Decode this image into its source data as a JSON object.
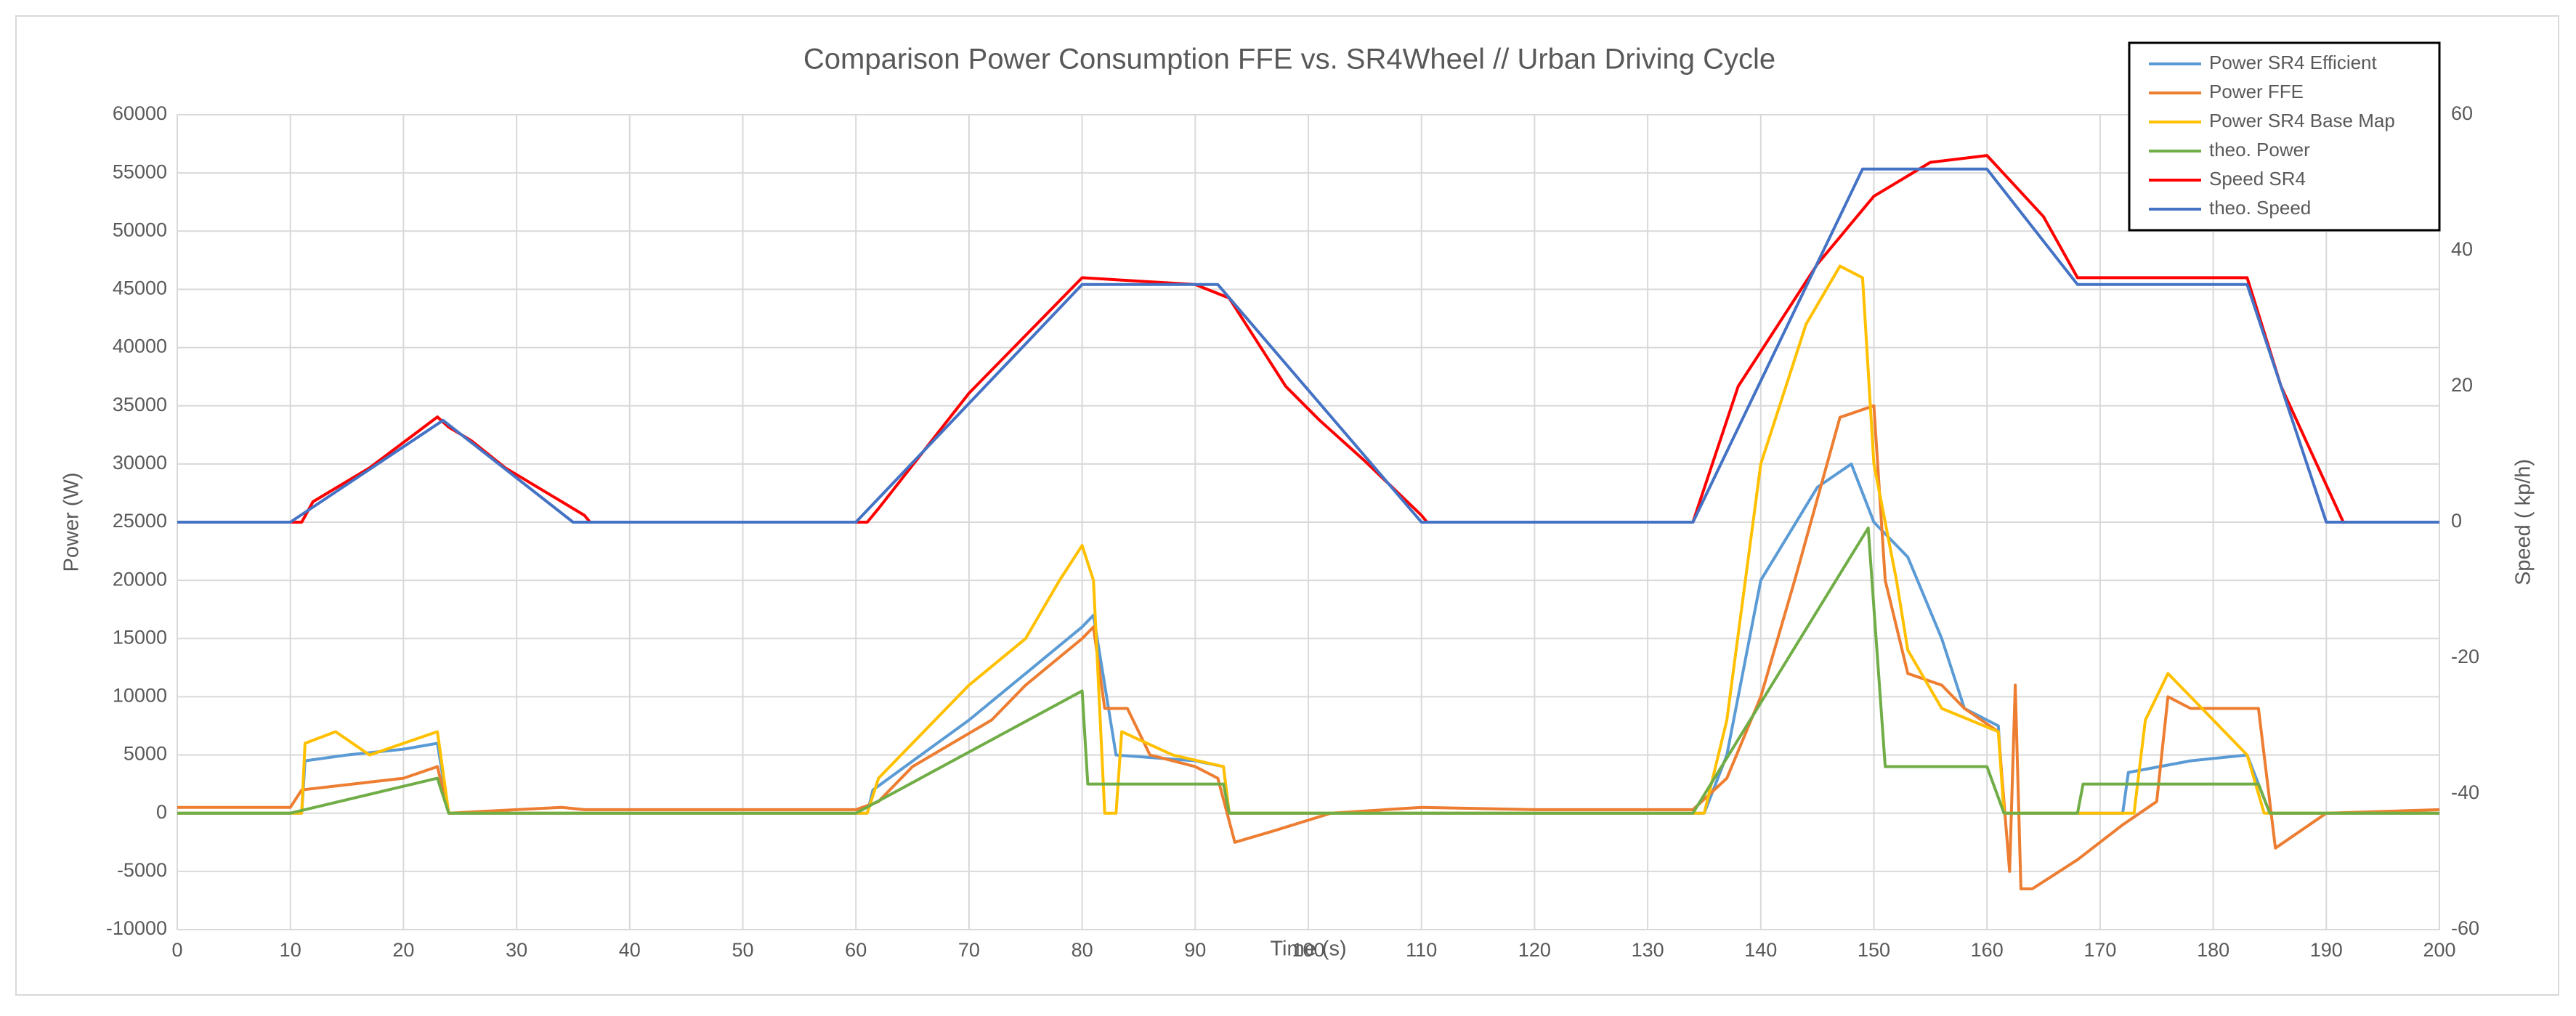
{
  "chart_data": {
    "type": "line",
    "title": "Comparison Power Consumption FFE vs. SR4Wheel // Urban Driving Cycle",
    "xlabel": "Time (s)",
    "ylabel": "Power (W)",
    "y2label": "Speed ( kp/h)",
    "xlim": [
      0,
      200
    ],
    "xticks": [
      0,
      10,
      20,
      30,
      40,
      50,
      60,
      70,
      80,
      90,
      100,
      110,
      120,
      130,
      140,
      150,
      160,
      170,
      180,
      190,
      200
    ],
    "ylim": [
      -10000,
      60000
    ],
    "yticks": [
      -10000,
      -5000,
      0,
      5000,
      10000,
      15000,
      20000,
      25000,
      30000,
      35000,
      40000,
      45000,
      50000,
      55000,
      60000
    ],
    "y2lim": [
      -60,
      60
    ],
    "y2ticks": [
      -60,
      -40,
      -20,
      0,
      20,
      40,
      60
    ],
    "grid": true,
    "legend": "upper right",
    "series": [
      {
        "name": "Power SR4 Efficient",
        "color": "#5b9bd5",
        "x": [
          0,
          11,
          11.3,
          15,
          20,
          23,
          24,
          61,
          61.5,
          70,
          75,
          80,
          81,
          83,
          90,
          92.5,
          93,
          135,
          137,
          140,
          145,
          148,
          150,
          153,
          156,
          158,
          161,
          161.5,
          172,
          172.5,
          178,
          183,
          185,
          200
        ],
        "values": [
          0,
          0,
          4500,
          5000,
          5500,
          6000,
          0,
          0,
          2000,
          8000,
          12000,
          16000,
          17000,
          5000,
          4500,
          4000,
          0,
          0,
          5000,
          20000,
          28000,
          30000,
          25000,
          22000,
          15000,
          9000,
          7500,
          0,
          0,
          3500,
          4500,
          5000,
          0,
          0
        ]
      },
      {
        "name": "Power FFE",
        "color": "#ed7d31",
        "x": [
          0,
          10,
          11,
          20,
          23,
          24,
          30,
          34,
          36,
          60,
          62,
          65,
          72,
          75,
          80,
          81,
          82,
          84,
          86,
          90,
          92,
          93.5,
          97,
          102,
          110,
          120,
          134,
          137,
          140,
          143,
          145,
          147,
          150,
          151,
          153,
          156,
          158,
          161,
          162,
          162.5,
          163,
          164,
          168,
          172,
          175,
          176,
          178,
          184,
          185.5,
          190,
          200
        ],
        "values": [
          500,
          500,
          2000,
          3000,
          4000,
          0,
          300,
          500,
          300,
          300,
          1000,
          4000,
          8000,
          11000,
          15000,
          16000,
          9000,
          9000,
          5000,
          4000,
          3000,
          -2500,
          -1500,
          0,
          500,
          300,
          300,
          3000,
          10000,
          20000,
          27000,
          34000,
          35000,
          20000,
          12000,
          11000,
          9000,
          7000,
          -5000,
          11000,
          -6500,
          -6500,
          -4000,
          -1000,
          1000,
          10000,
          9000,
          9000,
          -3000,
          0,
          300
        ]
      },
      {
        "name": "Power SR4 Base Map",
        "color": "#ffc000",
        "x": [
          0,
          11,
          11.3,
          14,
          17,
          20,
          23,
          24,
          61,
          62,
          70,
          75,
          78,
          80,
          81,
          82,
          83,
          83.5,
          88,
          92.5,
          93,
          135,
          137,
          140,
          144,
          147,
          149,
          150,
          152,
          153,
          156,
          161,
          161.5,
          173,
          174,
          176,
          178,
          182,
          183,
          184.5,
          200
        ],
        "values": [
          0,
          0,
          6000,
          7000,
          5000,
          6000,
          7000,
          0,
          0,
          3000,
          11000,
          15000,
          20000,
          23000,
          20000,
          0,
          0,
          7000,
          5000,
          4000,
          0,
          0,
          8000,
          30000,
          42000,
          47000,
          46000,
          30000,
          20000,
          14000,
          9000,
          7000,
          0,
          0,
          8000,
          12000,
          10000,
          6000,
          5000,
          0,
          0
        ]
      },
      {
        "name": "theo. Power",
        "color": "#70ad47",
        "x": [
          0,
          10,
          23,
          24,
          60,
          80,
          80.5,
          92.5,
          93,
          134,
          149.5,
          151,
          160,
          161.5,
          168,
          168.5,
          184,
          185,
          200
        ],
        "values": [
          0,
          0,
          3000,
          0,
          0,
          10500,
          2500,
          2500,
          0,
          0,
          24500,
          4000,
          4000,
          0,
          0,
          2500,
          2500,
          0,
          0
        ]
      },
      {
        "name": "Speed SR4",
        "color": "#ff0000",
        "axis": "y2",
        "x": [
          0,
          11,
          12,
          17,
          21,
          23,
          24,
          26,
          29,
          34,
          36,
          36.5,
          61,
          62,
          70,
          80,
          90,
          93,
          98,
          101,
          105,
          110,
          110.5,
          134,
          138,
          145,
          150,
          155,
          160,
          165,
          168,
          183,
          186,
          191.5,
          200
        ],
        "values": [
          0,
          0,
          3,
          8,
          13,
          15.5,
          14,
          12,
          8,
          3,
          1,
          0,
          0,
          2,
          19,
          36,
          35,
          33,
          20,
          15,
          9,
          1,
          0,
          0,
          20,
          38,
          48,
          53,
          54,
          45,
          36,
          36,
          20,
          0,
          0
        ]
      },
      {
        "name": "theo. Speed",
        "color": "#4472c4",
        "axis": "y2",
        "x": [
          0,
          10,
          23.5,
          35,
          60,
          80,
          92,
          110,
          134,
          149,
          160,
          168,
          183,
          190,
          200
        ],
        "values": [
          0,
          0,
          15,
          0,
          0,
          35,
          35,
          0,
          0,
          52,
          52,
          35,
          35,
          0,
          0
        ]
      }
    ]
  }
}
